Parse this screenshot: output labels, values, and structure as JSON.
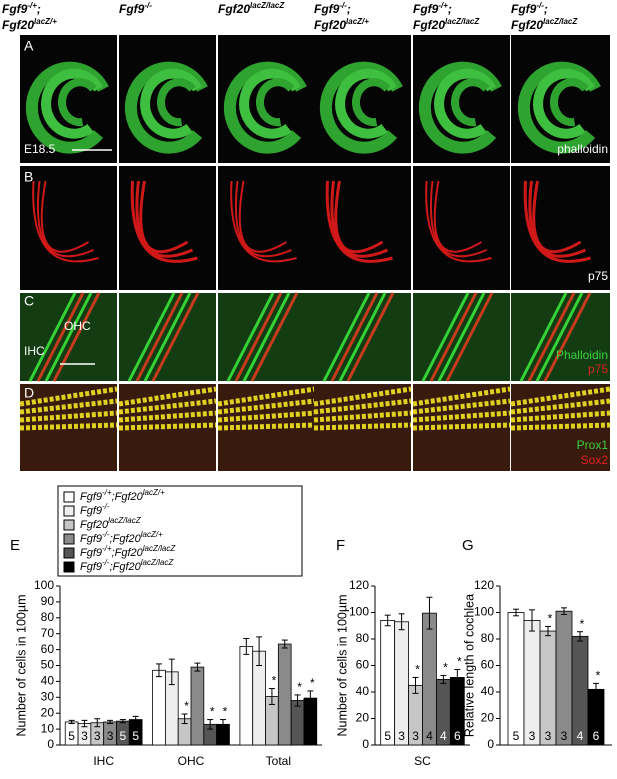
{
  "figure": {
    "columns": [
      [
        {
          "i": "Fgf9"
        },
        {
          "sup": "-/+"
        },
        {
          "i": ";"
        },
        {
          "i": "Fgf20"
        },
        {
          "sup": "lacZ/+"
        }
      ],
      [
        {
          "i": "Fgf9"
        },
        {
          "sup": "-/-"
        }
      ],
      [
        {
          "i": "Fgf20"
        },
        {
          "sup": "lacZ/lacZ"
        }
      ],
      [
        {
          "i": "Fgf9"
        },
        {
          "sup": "-/-"
        },
        {
          "i": ";"
        },
        {
          "i": "Fgf20"
        },
        {
          "sup": "lacZ/+"
        }
      ],
      [
        {
          "i": "Fgf9"
        },
        {
          "sup": "-/+"
        },
        {
          "i": ";"
        },
        {
          "i": "Fgf20"
        },
        {
          "sup": "lacZ/lacZ"
        }
      ],
      [
        {
          "i": "Fgf9"
        },
        {
          "sup": "-/-"
        },
        {
          "i": ";"
        },
        {
          "i": "Fgf20"
        },
        {
          "sup": "lacZ/lacZ"
        }
      ]
    ],
    "panels": [
      {
        "letter": "A",
        "labels": [
          "E18.5",
          "phalloidin"
        ]
      },
      {
        "letter": "B",
        "labels": [
          "p75"
        ]
      },
      {
        "letter": "C",
        "labels": [
          "IHC",
          "OHC",
          "Phalloidin",
          "p75"
        ]
      },
      {
        "letter": "D",
        "labels": [
          "Prox1",
          "Sox2"
        ]
      }
    ]
  },
  "chart_data": [
    {
      "type": "bar",
      "panel": "E",
      "ylabel": "Number of cells in 100µm",
      "categories": [
        "IHC",
        "OHC",
        "Total"
      ],
      "ylim": [
        0,
        100
      ],
      "yticks": [
        0,
        10,
        20,
        30,
        40,
        50,
        60,
        70,
        80,
        90,
        100
      ],
      "series": [
        {
          "name": [
            {
              "i": "Fgf9"
            },
            {
              "sup": "-/+"
            },
            {
              "i": ";Fgf20"
            },
            {
              "sup": "lacZ/+"
            }
          ],
          "color": "#ffffff",
          "values": [
            14.5,
            47,
            62
          ],
          "errors": [
            1,
            4,
            5
          ],
          "n": 5,
          "stars": [
            null,
            null,
            null
          ]
        },
        {
          "name": [
            {
              "i": "Fgf9"
            },
            {
              "sup": "-/-"
            }
          ],
          "color": "#eeeeee",
          "values": [
            13.5,
            46,
            59
          ],
          "errors": [
            2,
            8,
            9
          ],
          "n": 3,
          "stars": [
            null,
            null,
            null
          ]
        },
        {
          "name": [
            {
              "i": "Fgf20"
            },
            {
              "sup": "lacZ/lacZ"
            }
          ],
          "color": "#c6c6c6",
          "values": [
            14,
            16.5,
            30.5
          ],
          "errors": [
            2.5,
            3,
            5
          ],
          "n": 3,
          "stars": [
            null,
            "*",
            "*"
          ]
        },
        {
          "name": [
            {
              "i": "Fgf9"
            },
            {
              "sup": "-/-"
            },
            {
              "i": ";Fgf20"
            },
            {
              "sup": "lacZ/+"
            }
          ],
          "color": "#8a8a8a",
          "values": [
            14.5,
            49,
            63.5
          ],
          "errors": [
            1,
            2.5,
            2.5
          ],
          "n": 3,
          "stars": [
            null,
            null,
            null
          ]
        },
        {
          "name": [
            {
              "i": "Fgf9"
            },
            {
              "sup": "-/+"
            },
            {
              "i": ";Fgf20"
            },
            {
              "sup": "lacZ/lacZ"
            }
          ],
          "color": "#555555",
          "values": [
            15,
            13,
            28
          ],
          "errors": [
            1,
            3,
            3.5
          ],
          "n": 5,
          "stars": [
            null,
            "*",
            "*"
          ]
        },
        {
          "name": [
            {
              "i": "Fgf9"
            },
            {
              "sup": "-/-"
            },
            {
              "i": ";Fgf20"
            },
            {
              "sup": "lacZ/lacZ"
            }
          ],
          "color": "#000000",
          "values": [
            16,
            13,
            29.5
          ],
          "errors": [
            2,
            3,
            4.5
          ],
          "n": 5,
          "stars": [
            null,
            "*",
            "*"
          ]
        }
      ]
    },
    {
      "type": "bar",
      "panel": "F",
      "ylabel": "Number of cells in 100µm",
      "categories": [
        "SC"
      ],
      "ylim": [
        0,
        120
      ],
      "yticks": [
        0,
        20,
        40,
        60,
        80,
        100,
        120
      ],
      "series": [
        {
          "color": "#ffffff",
          "values": [
            94
          ],
          "errors": [
            4
          ],
          "n": 5,
          "stars": [
            null
          ]
        },
        {
          "color": "#eeeeee",
          "values": [
            93
          ],
          "errors": [
            6
          ],
          "n": 3,
          "stars": [
            null
          ]
        },
        {
          "color": "#c6c6c6",
          "values": [
            45
          ],
          "errors": [
            6
          ],
          "n": 3,
          "stars": [
            "*"
          ]
        },
        {
          "color": "#8a8a8a",
          "values": [
            99.5
          ],
          "errors": [
            12
          ],
          "n": 4,
          "stars": [
            null
          ]
        },
        {
          "color": "#555555",
          "values": [
            49.5
          ],
          "errors": [
            3
          ],
          "n": 4,
          "stars": [
            "*"
          ]
        },
        {
          "color": "#000000",
          "values": [
            51
          ],
          "errors": [
            6
          ],
          "n": 6,
          "stars": [
            "*"
          ]
        }
      ]
    },
    {
      "type": "bar",
      "panel": "G",
      "ylabel": "Relative length of cochlea",
      "ylim": [
        0,
        120
      ],
      "yticks": [
        0,
        20,
        40,
        60,
        80,
        100,
        120
      ],
      "series": [
        {
          "color": "#ffffff",
          "values": [
            100
          ],
          "errors": [
            2.5
          ],
          "n": 5,
          "stars": [
            null
          ]
        },
        {
          "color": "#eeeeee",
          "values": [
            94
          ],
          "errors": [
            8
          ],
          "n": 3,
          "stars": [
            null
          ]
        },
        {
          "color": "#c6c6c6",
          "values": [
            86
          ],
          "errors": [
            3.5
          ],
          "n": 3,
          "stars": [
            "*"
          ]
        },
        {
          "color": "#8a8a8a",
          "values": [
            101
          ],
          "errors": [
            2.5
          ],
          "n": 3,
          "stars": [
            null
          ]
        },
        {
          "color": "#555555",
          "values": [
            82
          ],
          "errors": [
            3.5
          ],
          "n": 4,
          "stars": [
            "*"
          ]
        },
        {
          "color": "#000000",
          "values": [
            42
          ],
          "errors": [
            4.5
          ],
          "n": 6,
          "stars": [
            "*"
          ]
        }
      ]
    }
  ]
}
